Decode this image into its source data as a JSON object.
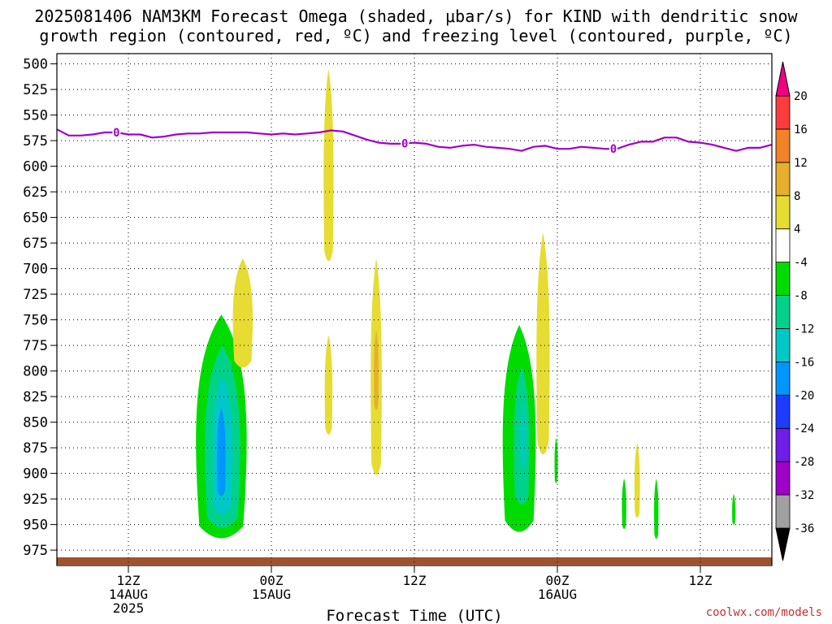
{
  "title": {
    "line1": "2025081406 NAM3KM Forecast Omega (shaded, μbar/s) for KIND with dendritic snow",
    "line2": "growth region (contoured, red, ºC) and freezing level (contoured, purple, ºC)"
  },
  "credit": "coolwx.com/models",
  "chart_data": {
    "type": "heatmap",
    "title": "2025081406 NAM3KM Forecast Omega (shaded, μbar/s) for KIND with dendritic snow growth region (contoured, red, ºC) and freezing level (contoured, purple, ºC)",
    "xlabel": "Forecast Time (UTC)",
    "ylabel": "",
    "x_unit": "forecast hour from 2025-08-14 06Z",
    "xlim": [
      0,
      60
    ],
    "y_unit": "hPa",
    "ylim": [
      990,
      490
    ],
    "y_ticks": [
      500,
      525,
      550,
      575,
      600,
      625,
      650,
      675,
      700,
      725,
      750,
      775,
      800,
      825,
      850,
      875,
      900,
      925,
      950,
      975
    ],
    "x_ticks": [
      {
        "hour": 6,
        "lines": [
          "12Z",
          "14AUG",
          "2025"
        ]
      },
      {
        "hour": 18,
        "lines": [
          "00Z",
          "15AUG"
        ]
      },
      {
        "hour": 30,
        "lines": [
          "12Z"
        ]
      },
      {
        "hour": 42,
        "lines": [
          "00Z",
          "16AUG"
        ]
      },
      {
        "hour": 54,
        "lines": [
          "12Z"
        ]
      }
    ],
    "grid": true,
    "colorbar": {
      "levels": [
        -36,
        -32,
        -28,
        -24,
        -20,
        -16,
        -12,
        -8,
        -4,
        4,
        8,
        12,
        16,
        20
      ],
      "labels": [
        "20",
        "16",
        "12",
        "8",
        "4",
        "-4",
        "-8",
        "-12",
        "-16",
        "-20",
        "-24",
        "-28",
        "-32",
        "-36"
      ],
      "colors": [
        "#000000",
        "#a0a0a0",
        "#a000c8",
        "#6e1ee6",
        "#1e3cff",
        "#0096ff",
        "#00c8c8",
        "#00d28c",
        "#00dc00",
        "#ffffff",
        "#e6dc32",
        "#e6af2d",
        "#f08228",
        "#fa3c3c",
        "#f00082"
      ]
    },
    "omega_regions": [
      {
        "hour": 13.8,
        "p_top": 745,
        "p_bottom": 972,
        "half_width": 2.3,
        "min_value": -20,
        "color": "#00dc00"
      },
      {
        "hour": 13.9,
        "p_top": 775,
        "p_bottom": 960,
        "half_width": 1.6,
        "min_value": -20,
        "color": "#00d28c"
      },
      {
        "hour": 13.9,
        "p_top": 805,
        "p_bottom": 945,
        "half_width": 0.9,
        "min_value": -20,
        "color": "#00c8c8"
      },
      {
        "hour": 13.8,
        "p_top": 835,
        "p_bottom": 925,
        "half_width": 0.4,
        "min_value": -20,
        "color": "#0096ff"
      },
      {
        "hour": 15.6,
        "p_top": 690,
        "p_bottom": 800,
        "half_width": 0.9,
        "max_value": 8,
        "color": "#e6dc32"
      },
      {
        "hour": 22.8,
        "p_top": 505,
        "p_bottom": 700,
        "half_width": 0.45,
        "max_value": 8,
        "color": "#e6dc32"
      },
      {
        "hour": 22.8,
        "p_top": 765,
        "p_bottom": 865,
        "half_width": 0.35,
        "max_value": 8,
        "color": "#e6dc32"
      },
      {
        "hour": 26.8,
        "p_top": 690,
        "p_bottom": 910,
        "half_width": 0.5,
        "max_value": 12,
        "color": "#e6dc32"
      },
      {
        "hour": 26.8,
        "p_top": 760,
        "p_bottom": 840,
        "half_width": 0.2,
        "max_value": 12,
        "color": "#e6af2d"
      },
      {
        "hour": 38.8,
        "p_top": 755,
        "p_bottom": 965,
        "half_width": 1.5,
        "min_value": -12,
        "color": "#00dc00"
      },
      {
        "hour": 39.0,
        "p_top": 795,
        "p_bottom": 935,
        "half_width": 0.7,
        "min_value": -12,
        "color": "#00d28c"
      },
      {
        "hour": 39.1,
        "p_top": 830,
        "p_bottom": 895,
        "half_width": 0.2,
        "min_value": -12,
        "color": "#00c8c8"
      },
      {
        "hour": 40.8,
        "p_top": 665,
        "p_bottom": 890,
        "half_width": 0.6,
        "max_value": 8,
        "color": "#e6dc32"
      },
      {
        "hour": 41.9,
        "p_top": 865,
        "p_bottom": 910,
        "half_width": 0.15,
        "min_value": -8,
        "color": "#00dc00"
      },
      {
        "hour": 47.6,
        "p_top": 905,
        "p_bottom": 955,
        "half_width": 0.2,
        "min_value": -8,
        "color": "#00dc00"
      },
      {
        "hour": 48.7,
        "p_top": 870,
        "p_bottom": 945,
        "half_width": 0.25,
        "max_value": 8,
        "color": "#e6dc32"
      },
      {
        "hour": 50.3,
        "p_top": 905,
        "p_bottom": 965,
        "half_width": 0.2,
        "min_value": -8,
        "color": "#00dc00"
      },
      {
        "hour": 56.8,
        "p_top": 920,
        "p_bottom": 950,
        "half_width": 0.15,
        "min_value": -8,
        "color": "#00dc00"
      }
    ],
    "freezing_level": {
      "contour_label": "0",
      "label_hours": [
        5,
        29.2,
        46.7
      ],
      "x": [
        0,
        1,
        2,
        3,
        4,
        5,
        6,
        7,
        8,
        9,
        10,
        11,
        12,
        13,
        14,
        15,
        16,
        17,
        18,
        19,
        20,
        21,
        22,
        23,
        24,
        25,
        26,
        27,
        28,
        29,
        30,
        31,
        32,
        33,
        34,
        35,
        36,
        37,
        38,
        39,
        40,
        41,
        42,
        43,
        44,
        45,
        46,
        47,
        48,
        49,
        50,
        51,
        52,
        53,
        54,
        55,
        56,
        57,
        58,
        59,
        60
      ],
      "p": [
        564,
        570,
        570,
        569,
        567,
        567,
        569,
        569,
        572,
        571,
        569,
        568,
        568,
        567,
        567,
        567,
        567,
        568,
        569,
        568,
        569,
        568,
        567,
        565,
        566,
        570,
        574,
        577,
        578,
        578,
        577,
        578,
        581,
        582,
        580,
        579,
        581,
        582,
        583,
        585,
        581,
        580,
        583,
        583,
        581,
        582,
        583,
        583,
        579,
        576,
        576,
        572,
        572,
        576,
        577,
        579,
        582,
        585,
        582,
        582,
        579
      ]
    },
    "ground": {
      "p_top": 982,
      "color": "#a0522d"
    }
  }
}
